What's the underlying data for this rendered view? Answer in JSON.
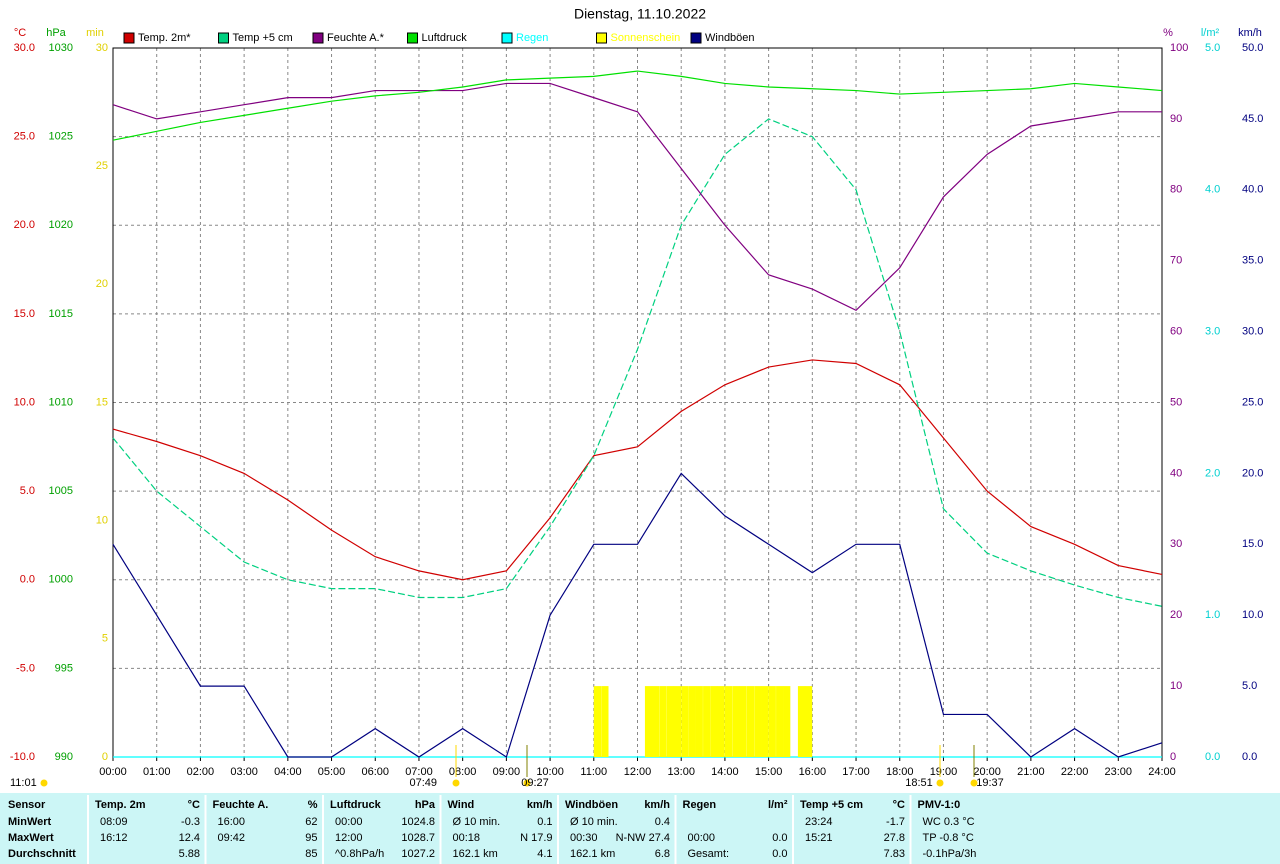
{
  "chart_data": {
    "type": "line",
    "title": "Dienstag, 11.10.2022",
    "x": [
      0,
      1,
      2,
      3,
      4,
      5,
      6,
      7,
      8,
      9,
      10,
      11,
      12,
      13,
      14,
      15,
      16,
      17,
      18,
      19,
      20,
      21,
      22,
      23,
      24
    ],
    "xlim": [
      0,
      24
    ],
    "xticks": [
      {
        "value": 0,
        "label": "00:00"
      },
      {
        "value": 1,
        "label": "01:00"
      },
      {
        "value": 2,
        "label": "02:00"
      },
      {
        "value": 3,
        "label": "03:00"
      },
      {
        "value": 4,
        "label": "04:00"
      },
      {
        "value": 5,
        "label": "05:00"
      },
      {
        "value": 6,
        "label": "06:00"
      },
      {
        "value": 7,
        "label": "07:00"
      },
      {
        "value": 8,
        "label": "08:00"
      },
      {
        "value": 9,
        "label": "09:00"
      },
      {
        "value": 10,
        "label": "10:00"
      },
      {
        "value": 11,
        "label": "11:00"
      },
      {
        "value": 12,
        "label": "12:00"
      },
      {
        "value": 13,
        "label": "13:00"
      },
      {
        "value": 14,
        "label": "14:00"
      },
      {
        "value": 15,
        "label": "15:00"
      },
      {
        "value": 16,
        "label": "16:00"
      },
      {
        "value": 17,
        "label": "17:00"
      },
      {
        "value": 18,
        "label": "18:00"
      },
      {
        "value": 19,
        "label": "19:00"
      },
      {
        "value": 20,
        "label": "20:00"
      },
      {
        "value": 21,
        "label": "21:00"
      },
      {
        "value": 22,
        "label": "22:00"
      },
      {
        "value": 23,
        "label": "23:00"
      },
      {
        "value": 24,
        "label": "24:00"
      }
    ],
    "ylabel": "°C",
    "ylim": [
      -10,
      30
    ],
    "yticks": [
      {
        "value": -10,
        "label": "-10.0"
      },
      {
        "value": -5,
        "label": "-5.0"
      },
      {
        "value": 0,
        "label": "0.0"
      },
      {
        "value": 5,
        "label": "5.0"
      },
      {
        "value": 10,
        "label": "10.0"
      },
      {
        "value": 15,
        "label": "15.0"
      },
      {
        "value": 20,
        "label": "20.0"
      },
      {
        "value": 25,
        "label": "25.0"
      },
      {
        "value": 30,
        "label": "30.0"
      }
    ],
    "y2label": "hPa",
    "y2lim": [
      990,
      1030
    ],
    "y2ticks": [
      990,
      995,
      1000,
      1005,
      1010,
      1015,
      1020,
      1025,
      1030
    ],
    "y3label": "min",
    "y3lim": [
      0,
      30
    ],
    "y3ticks": [
      0,
      5,
      10,
      15,
      20,
      25,
      30
    ],
    "y4label": "%",
    "y4lim": [
      0,
      100
    ],
    "y4ticks": [
      0,
      10,
      20,
      30,
      40,
      50,
      60,
      70,
      80,
      90,
      100
    ],
    "y5label": "l/m²",
    "y5lim": [
      0,
      5
    ],
    "y5ticks": [
      {
        "value": 0,
        "label": "0.0"
      },
      {
        "value": 1,
        "label": "1.0"
      },
      {
        "value": 2,
        "label": "2.0"
      },
      {
        "value": 3,
        "label": "3.0"
      },
      {
        "value": 4,
        "label": "4.0"
      },
      {
        "value": 5,
        "label": "5.0"
      }
    ],
    "y6label": "km/h",
    "y6lim": [
      0,
      50
    ],
    "y6ticks": [
      {
        "value": 0,
        "label": "0.0"
      },
      {
        "value": 5,
        "label": "5.0"
      },
      {
        "value": 10,
        "label": "10.0"
      },
      {
        "value": 15,
        "label": "15.0"
      },
      {
        "value": 20,
        "label": "20.0"
      },
      {
        "value": 25,
        "label": "25.0"
      },
      {
        "value": 30,
        "label": "30.0"
      },
      {
        "value": 35,
        "label": "35.0"
      },
      {
        "value": 40,
        "label": "40.0"
      },
      {
        "value": 45,
        "label": "45.0"
      },
      {
        "value": 50,
        "label": "50.0"
      }
    ],
    "grid": true,
    "series": [
      {
        "name": "Temp. 2m*",
        "color": "#d00000",
        "values": [
          8.5,
          7.8,
          7.0,
          6.0,
          4.5,
          2.8,
          1.3,
          0.5,
          0.0,
          0.5,
          3.5,
          7.0,
          7.5,
          9.5,
          11.0,
          12.0,
          12.4,
          12.2,
          11.0,
          8.0,
          5.0,
          3.0,
          2.0,
          0.8,
          0.3
        ]
      },
      {
        "name": "Temp +5 cm",
        "color": "#00d080",
        "dashed": true,
        "values": [
          8.0,
          5.0,
          3.0,
          1.0,
          0.0,
          -0.5,
          -0.5,
          -1.0,
          -1.0,
          -0.5,
          3.0,
          7.0,
          13.0,
          20.0,
          24.0,
          26.0,
          25.0,
          22.0,
          14.0,
          4.0,
          1.5,
          0.5,
          -0.3,
          -1.0,
          -1.5
        ]
      },
      {
        "name": "Feuchte A.*",
        "color": "#800080",
        "axis": "y4",
        "values": [
          92,
          90,
          91,
          92,
          93,
          93,
          94,
          94,
          94,
          95,
          95,
          93,
          91,
          83,
          75,
          68,
          66,
          63,
          69,
          79,
          85,
          89,
          90,
          91,
          91
        ]
      },
      {
        "name": "Luftdruck",
        "color": "#00e000",
        "axis": "y2",
        "values": [
          1024.8,
          1025.3,
          1025.8,
          1026.2,
          1026.6,
          1027.0,
          1027.3,
          1027.5,
          1027.8,
          1028.2,
          1028.3,
          1028.4,
          1028.7,
          1028.4,
          1028.0,
          1027.8,
          1027.7,
          1027.6,
          1027.4,
          1027.5,
          1027.6,
          1027.7,
          1028.0,
          1027.8,
          1027.6
        ]
      },
      {
        "name": "Regen",
        "color": "#00ffff",
        "axis": "y5",
        "values": [
          0,
          0,
          0,
          0,
          0,
          0,
          0,
          0,
          0,
          0,
          0,
          0,
          0,
          0,
          0,
          0,
          0,
          0,
          0,
          0,
          0,
          0,
          0,
          0,
          0
        ]
      },
      {
        "name": "Sonnenschein",
        "color": "#ffff00",
        "axis": "y3",
        "type": "bar",
        "x": [
          11.0,
          11.17,
          12.17,
          12.33,
          12.5,
          12.67,
          12.83,
          13.0,
          13.17,
          13.33,
          13.5,
          13.67,
          13.83,
          14.0,
          14.17,
          14.33,
          14.5,
          14.67,
          14.83,
          15.0,
          15.17,
          15.33,
          15.67,
          15.83
        ],
        "values": [
          3,
          3,
          3,
          3,
          3,
          3,
          3,
          3,
          3,
          3,
          3,
          3,
          3,
          3,
          3,
          3,
          3,
          3,
          3,
          3,
          3,
          3,
          3,
          3
        ]
      },
      {
        "name": "Windböen",
        "color": "#000080",
        "axis": "y6",
        "values": [
          15,
          10,
          5,
          5,
          0,
          0,
          2,
          0,
          2,
          0,
          10,
          15,
          15,
          20,
          17,
          15,
          13,
          15,
          15,
          3,
          3,
          0,
          2,
          0,
          1
        ]
      }
    ],
    "annotations": [
      "07:49",
      "09:27",
      "18:51",
      "19:37",
      "11:01"
    ]
  },
  "table": {
    "sensor": "Sensor",
    "row_labels": [
      "MinWert",
      "MaxWert",
      "Durchschnitt"
    ],
    "groups": [
      {
        "name": "Temp. 2m",
        "unit": "°C",
        "rows": [
          [
            "08:09",
            "-0.3"
          ],
          [
            "16:12",
            "12.4"
          ],
          [
            "5.88"
          ]
        ]
      },
      {
        "name": "Feuchte A.",
        "unit": "%",
        "rows": [
          [
            "16:00",
            "62"
          ],
          [
            "09:42",
            "95"
          ],
          [
            "85"
          ]
        ]
      },
      {
        "name": "Luftdruck",
        "unit": "hPa",
        "rows": [
          [
            "00:00",
            "1024.8"
          ],
          [
            "12:00",
            "1028.7"
          ],
          [
            "^0.8hPa/h",
            "1027.2"
          ]
        ]
      },
      {
        "name": "Wind",
        "unit": "km/h",
        "rows": [
          [
            "Ø 10 min.",
            "0.1"
          ],
          [
            "00:18",
            "N 17.9"
          ],
          [
            "162.1 km",
            "4.1"
          ]
        ]
      },
      {
        "name": "Windböen",
        "unit": "km/h",
        "rows": [
          [
            "Ø 10 min.",
            "0.4"
          ],
          [
            "00:30",
            "N-NW 27.4"
          ],
          [
            "162.1 km",
            "6.8"
          ]
        ]
      },
      {
        "name": "Regen",
        "unit": "l/m²",
        "rows": [
          [],
          [
            "00:00",
            "0.0"
          ],
          [
            "Gesamt:",
            "0.0"
          ]
        ]
      },
      {
        "name": "Temp +5 cm",
        "unit": "°C",
        "rows": [
          [
            "23:24",
            "-1.7"
          ],
          [
            "15:21",
            "27.8"
          ],
          [
            "7.83"
          ]
        ]
      },
      {
        "name": "PMV-1:0",
        "rows": [
          [
            "WC 0.3 °C"
          ],
          [
            "TP -0.8 °C"
          ],
          [
            "-0.1hPa/3h"
          ]
        ]
      }
    ]
  }
}
